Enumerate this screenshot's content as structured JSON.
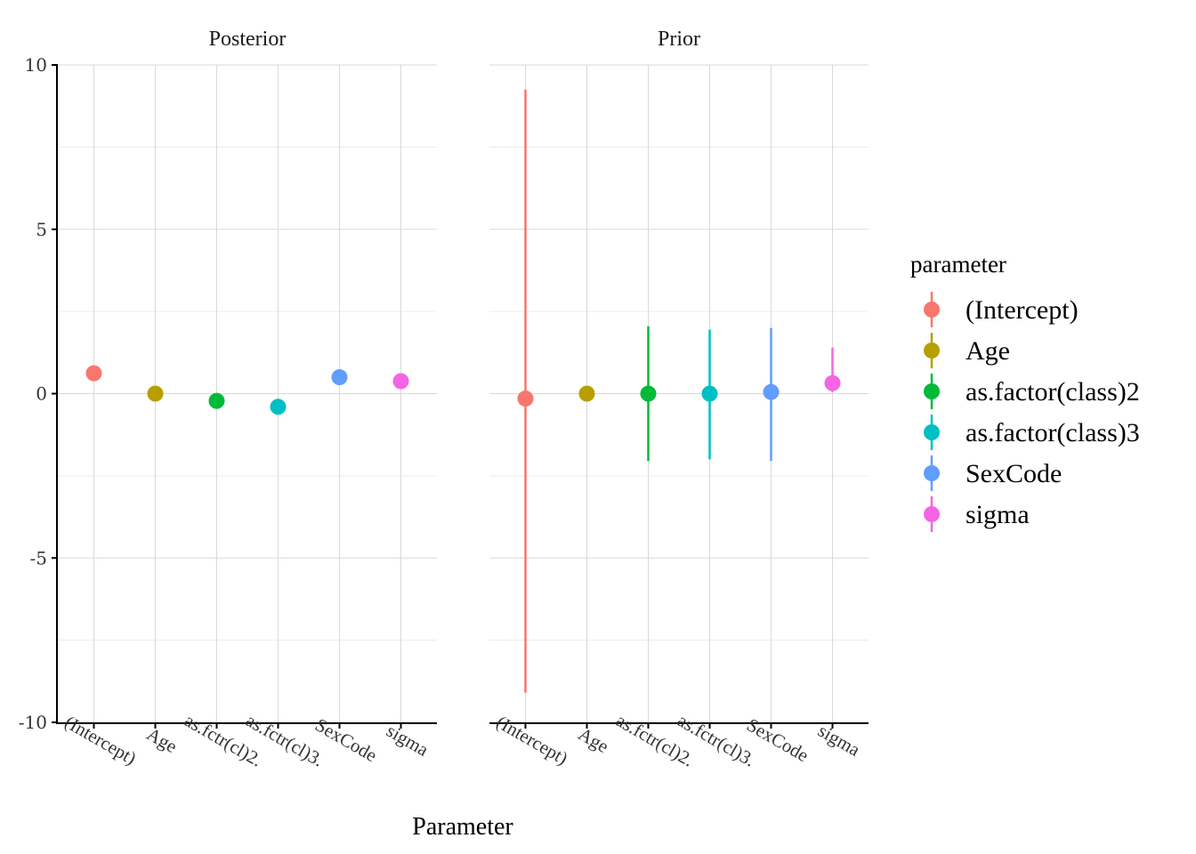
{
  "chart_data": {
    "type": "pointrange",
    "facets": [
      "Posterior",
      "Prior"
    ],
    "categories": [
      "(Intercept)",
      "Age",
      "as.factor(class)2",
      "as.factor(class)3",
      "SexCode",
      "sigma"
    ],
    "tick_labels": [
      "(Intercept)",
      "Age",
      "as.fctr(cl)2.",
      "as.fctr(cl)3.",
      "SexCode",
      "sigma"
    ],
    "xlabel": "Parameter",
    "ylabel": "",
    "ylim": [
      -10,
      10
    ],
    "y_ticks": [
      10,
      5,
      0,
      -5,
      -10
    ],
    "grid": true,
    "legend": {
      "title": "parameter",
      "placement": "right"
    },
    "series": [
      {
        "name": "(Intercept)",
        "color": "#F8766D",
        "posterior": {
          "estimate": 0.62,
          "low": 0.62,
          "high": 0.62
        },
        "prior": {
          "estimate": -0.15,
          "low": -9.1,
          "high": 9.25
        }
      },
      {
        "name": "Age",
        "color": "#B79F00",
        "posterior": {
          "estimate": 0.0,
          "low": 0.0,
          "high": 0.0
        },
        "prior": {
          "estimate": 0.0,
          "low": 0.0,
          "high": 0.0
        }
      },
      {
        "name": "as.factor(class)2",
        "color": "#00BA38",
        "posterior": {
          "estimate": -0.22,
          "low": -0.22,
          "high": -0.22
        },
        "prior": {
          "estimate": 0.0,
          "low": -2.05,
          "high": 2.05
        }
      },
      {
        "name": "as.factor(class)3",
        "color": "#00BFC4",
        "posterior": {
          "estimate": -0.4,
          "low": -0.4,
          "high": -0.4
        },
        "prior": {
          "estimate": 0.0,
          "low": -2.0,
          "high": 1.95
        }
      },
      {
        "name": "SexCode",
        "color": "#619CFF",
        "posterior": {
          "estimate": 0.5,
          "low": 0.5,
          "high": 0.5
        },
        "prior": {
          "estimate": 0.05,
          "low": -2.05,
          "high": 2.0
        }
      },
      {
        "name": "sigma",
        "color": "#F564E3",
        "posterior": {
          "estimate": 0.38,
          "low": 0.38,
          "high": 0.38
        },
        "prior": {
          "estimate": 0.32,
          "low": 0.05,
          "high": 1.4
        }
      }
    ]
  }
}
